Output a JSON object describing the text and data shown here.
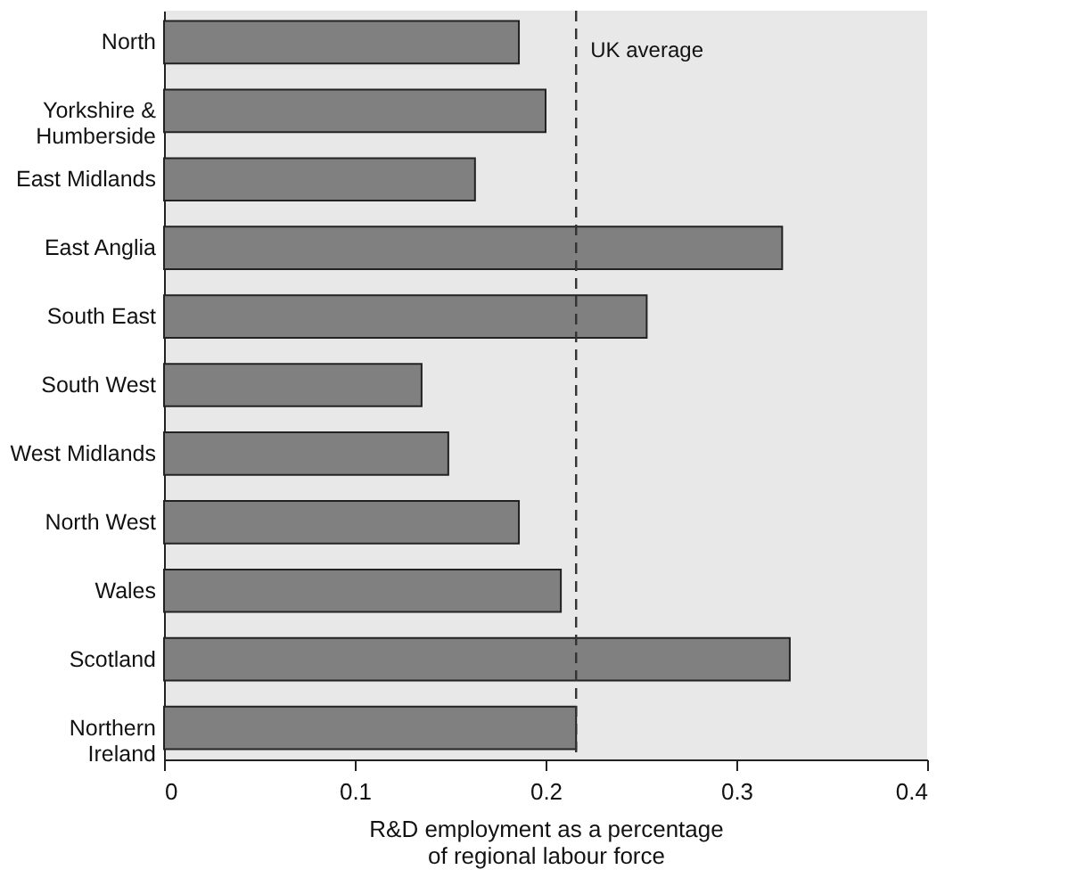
{
  "chart_data": {
    "type": "bar",
    "orientation": "horizontal",
    "categories": [
      "North",
      "Yorkshire & Humberside",
      "East Midlands",
      "East Anglia",
      "South East",
      "South West",
      "West Midlands",
      "North West",
      "Wales",
      "Scotland",
      "Northern Ireland"
    ],
    "values": [
      0.186,
      0.2,
      0.163,
      0.324,
      0.253,
      0.135,
      0.149,
      0.186,
      0.208,
      0.328,
      0.216
    ],
    "color": "#808080",
    "xlabel": "R&D employment as a percentage of regional labour force",
    "xlim": [
      0,
      0.4
    ],
    "xticks": [
      0,
      0.1,
      0.2,
      0.3,
      0.4
    ],
    "grid": false,
    "ref_lines": [
      {
        "axis": "x",
        "value": 0.216,
        "label": "UK average",
        "line_style": "dashed",
        "color": "#333333"
      }
    ]
  }
}
